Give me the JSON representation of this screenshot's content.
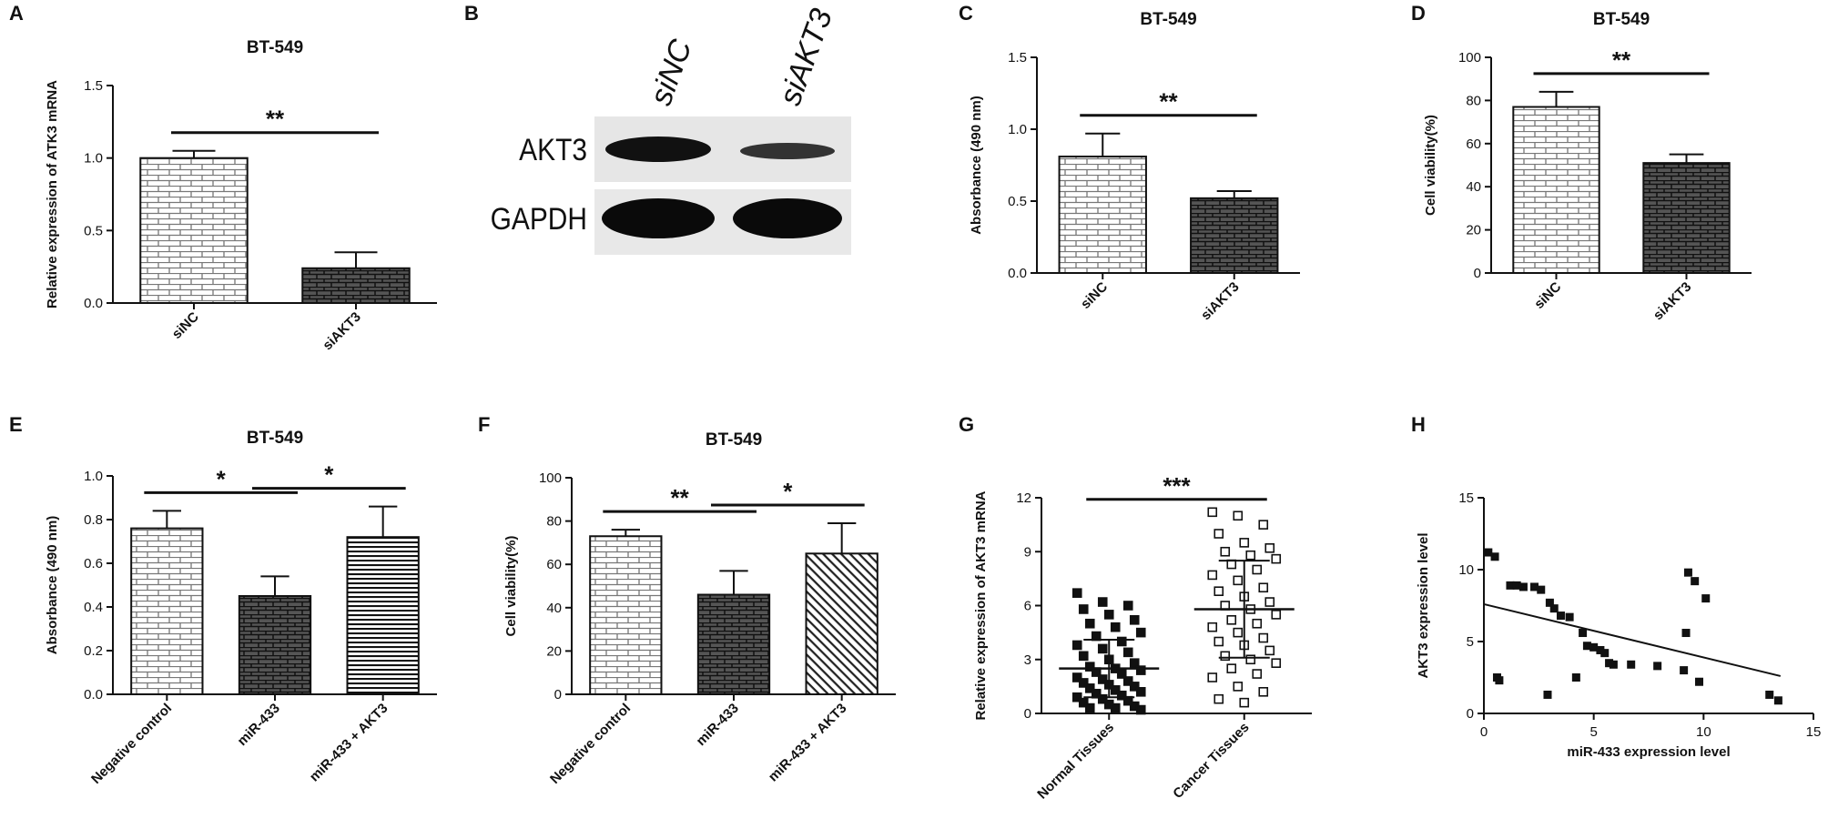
{
  "chart_data": [
    {
      "type": "bar",
      "label": "A",
      "title": "BT-549",
      "ylabel": "Relative expression of ATK3 mRNA",
      "categories": [
        "siNC",
        "siAKT3"
      ],
      "values": [
        1.0,
        0.24
      ],
      "errors": [
        0.05,
        0.11
      ],
      "patterns": [
        "brick-light",
        "brick-dark"
      ],
      "ylim": [
        0,
        1.5
      ],
      "yticks": [
        {
          "value": 0,
          "label": "0.0"
        },
        0.5,
        {
          "value": 1,
          "label": "1.0"
        },
        1.5
      ],
      "significance": [
        {
          "from": 0,
          "to": 1,
          "label": "**"
        }
      ]
    },
    {
      "type": "blot",
      "label": "B",
      "lanes": [
        "siNC",
        "siAKT3"
      ],
      "rows": [
        "AKT3",
        "GAPDH"
      ]
    },
    {
      "type": "bar",
      "label": "C",
      "title": "BT-549",
      "ylabel": "Absorbance (490 nm)",
      "categories": [
        "siNC",
        "siAKT3"
      ],
      "values": [
        0.81,
        0.52
      ],
      "errors": [
        0.16,
        0.05
      ],
      "patterns": [
        "brick-light",
        "brick-dark"
      ],
      "ylim": [
        0,
        1.5
      ],
      "yticks": [
        {
          "value": 0,
          "label": "0.0"
        },
        0.5,
        {
          "value": 1,
          "label": "1.0"
        },
        1.5
      ],
      "significance": [
        {
          "from": 0,
          "to": 1,
          "label": "**"
        }
      ]
    },
    {
      "type": "bar",
      "label": "D",
      "title": "BT-549",
      "ylabel": "Cell viability(%)",
      "categories": [
        "siNC",
        "siAKT3"
      ],
      "values": [
        77,
        51
      ],
      "errors": [
        7,
        4
      ],
      "patterns": [
        "brick-light",
        "brick-dark"
      ],
      "ylim": [
        0,
        100
      ],
      "yticks": [
        0,
        20,
        40,
        60,
        80,
        100
      ],
      "significance": [
        {
          "from": 0,
          "to": 1,
          "label": "**"
        }
      ]
    },
    {
      "type": "bar",
      "label": "E",
      "title": "BT-549",
      "ylabel": "Absorbance (490 nm)",
      "categories": [
        "Negative control",
        "miR-433",
        "miR-433 + AKT3"
      ],
      "values": [
        0.76,
        0.45,
        0.72
      ],
      "errors": [
        0.08,
        0.09,
        0.14
      ],
      "patterns": [
        "brick-light",
        "brick-dark",
        "hlines"
      ],
      "ylim": [
        0,
        1.0
      ],
      "yticks": [
        {
          "value": 0,
          "label": "0.0"
        },
        0.2,
        0.4,
        0.6,
        0.8,
        {
          "value": 1,
          "label": "1.0"
        }
      ],
      "significance": [
        {
          "from": 0,
          "to": 1,
          "label": "*"
        },
        {
          "from": 1,
          "to": 2,
          "label": "*"
        }
      ]
    },
    {
      "type": "bar",
      "label": "F",
      "title": "BT-549",
      "ylabel": "Cell viability(%)",
      "categories": [
        "Negative control",
        "miR-433",
        "miR-433 + AKT3"
      ],
      "values": [
        73,
        46,
        65
      ],
      "errors": [
        3,
        11,
        14
      ],
      "patterns": [
        "brick-light",
        "brick-dark",
        "diag"
      ],
      "ylim": [
        0,
        100
      ],
      "yticks": [
        0,
        20,
        40,
        60,
        80,
        100
      ],
      "significance": [
        {
          "from": 0,
          "to": 1,
          "label": "**"
        },
        {
          "from": 1,
          "to": 2,
          "label": "*"
        }
      ]
    },
    {
      "type": "dotplot",
      "label": "G",
      "ylabel": "Relative expression of AKT3 mRNA",
      "categories": [
        "Normal Tissues",
        "Cancer Tissues"
      ],
      "values": [
        [
          6.7,
          6.2,
          6.0,
          5.8,
          5.5,
          5.2,
          5.0,
          4.8,
          4.5,
          4.3,
          4.0,
          3.8,
          3.6,
          3.4,
          3.2,
          3.0,
          2.8,
          2.6,
          2.5,
          2.4,
          2.3,
          2.2,
          2.0,
          1.9,
          1.8,
          1.7,
          1.6,
          1.5,
          1.4,
          1.3,
          1.2,
          1.1,
          1.0,
          0.9,
          0.8,
          0.7,
          0.6,
          0.5,
          0.4,
          0.3,
          0.3,
          0.2
        ],
        [
          11.2,
          11.0,
          10.5,
          10.0,
          9.5,
          9.2,
          9.0,
          8.8,
          8.6,
          8.3,
          8.0,
          7.7,
          7.4,
          7.0,
          6.8,
          6.5,
          6.2,
          6.0,
          5.8,
          5.5,
          5.2,
          5.0,
          4.8,
          4.5,
          4.2,
          4.0,
          3.8,
          3.5,
          3.2,
          3.0,
          2.8,
          2.5,
          2.2,
          2.0,
          1.5,
          1.2,
          0.8,
          0.6
        ]
      ],
      "markers": [
        "filled-square",
        "open-square"
      ],
      "means": [
        2.5,
        5.8
      ],
      "sd": [
        1.6,
        2.7
      ],
      "ylim": [
        0,
        12
      ],
      "yticks": [
        0,
        3,
        6,
        9,
        12
      ],
      "significance": [
        {
          "from": 0,
          "to": 1,
          "label": "***"
        }
      ]
    },
    {
      "type": "scatter",
      "label": "H",
      "xlabel": "miR-433 expression level",
      "ylabel": "AKT3 expression level",
      "x": [
        0.2,
        0.5,
        0.6,
        0.7,
        1.2,
        1.5,
        1.8,
        2.3,
        2.6,
        2.9,
        3.0,
        3.2,
        3.5,
        3.9,
        4.2,
        4.5,
        4.7,
        5.0,
        5.3,
        5.5,
        5.7,
        5.9,
        6.7,
        7.9,
        9.1,
        9.2,
        9.3,
        9.6,
        9.8,
        10.1,
        13.0,
        13.4
      ],
      "y": [
        11.2,
        10.9,
        2.5,
        2.3,
        8.9,
        8.9,
        8.8,
        8.8,
        8.6,
        1.3,
        7.7,
        7.3,
        6.8,
        6.7,
        2.5,
        5.6,
        4.7,
        4.6,
        4.4,
        4.2,
        3.5,
        3.4,
        3.4,
        3.3,
        3.0,
        5.6,
        9.8,
        9.2,
        2.2,
        8.0,
        1.3,
        0.9
      ],
      "fit": {
        "x": [
          0,
          13.5
        ],
        "y": [
          7.6,
          2.6
        ]
      },
      "xlim": [
        0,
        15
      ],
      "ylim": [
        0,
        15
      ],
      "xticks": [
        0,
        5,
        10,
        15
      ],
      "yticks": [
        0,
        5,
        10,
        15
      ]
    }
  ]
}
